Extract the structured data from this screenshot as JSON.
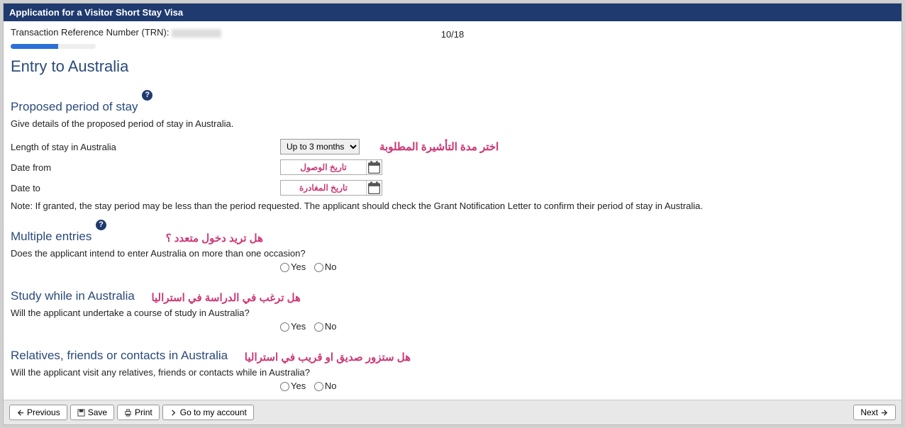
{
  "titlebar": "Application for a Visitor Short Stay Visa",
  "trn_label": "Transaction Reference Number (TRN):",
  "page_counter": "10/18",
  "progress_pct": 56,
  "page_heading": "Entry to Australia",
  "proposed": {
    "heading": "Proposed period of stay",
    "desc": "Give details of the proposed period of stay in Australia.",
    "length_label": "Length of stay in Australia",
    "length_value": "Up to 3 months",
    "length_annot": "اختر مدة التأشيرة المطلوبة",
    "from_label": "Date from",
    "from_placeholder": "تاريخ الوصول",
    "to_label": "Date to",
    "to_placeholder": "تاريخ المغادرة",
    "note": "Note: If granted, the stay period may be less than the period requested. The applicant should check the Grant Notification Letter to confirm their period of stay in Australia."
  },
  "multiple": {
    "heading": "Multiple entries",
    "annot": "هل تريد دخول متعدد ؟",
    "question": "Does the applicant intend to enter Australia on more than one occasion?"
  },
  "study": {
    "heading": "Study while in Australia",
    "annot": "هل ترغب في الدراسة في استراليا",
    "question": "Will the applicant undertake a course of study in Australia?"
  },
  "relatives": {
    "heading": "Relatives, friends or contacts in Australia",
    "annot": "هل ستزور صديق او قريب في استراليا",
    "question": "Will the applicant visit any relatives, friends or contacts while in Australia?"
  },
  "yes": "Yes",
  "no": "No",
  "footer": {
    "previous": "Previous",
    "save": "Save",
    "print": "Print",
    "account": "Go to my account",
    "next": "Next"
  }
}
